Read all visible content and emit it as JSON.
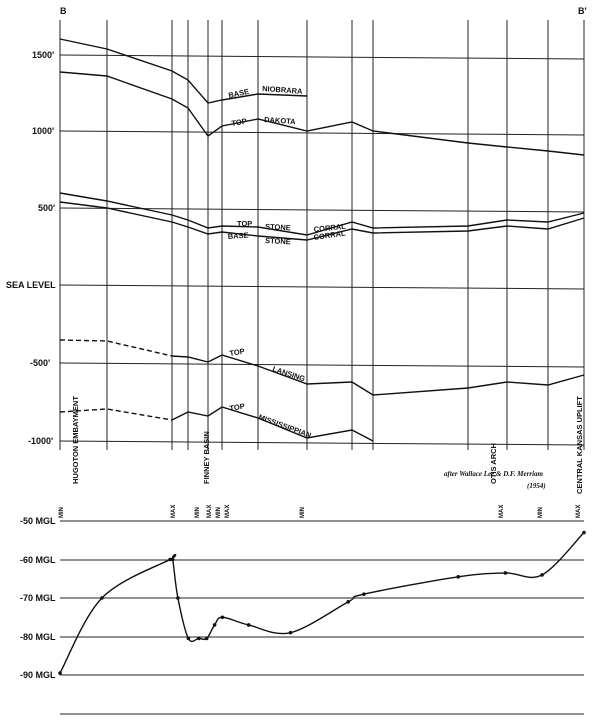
{
  "section": {
    "left_label": "B",
    "right_label": "B'",
    "y_ticks": [
      "1500'",
      "1000'",
      "500'",
      "SEA LEVEL",
      "-500'",
      "-1000'"
    ],
    "horizon_labels": [
      {
        "words": [
          "BASE",
          "NIOBRARA"
        ]
      },
      {
        "words": [
          "TOP",
          "DAKOTA"
        ]
      },
      {
        "words": [
          "TOP",
          "STONE",
          "CORRAL"
        ]
      },
      {
        "words": [
          "BASE",
          "STONE",
          "CORRAL"
        ]
      },
      {
        "words": [
          "TOP",
          "LANSING"
        ]
      },
      {
        "words": [
          "TOP",
          "MISSISSIPPIAN"
        ]
      }
    ],
    "structure_labels": [
      "HUGOTON EMBAYMENT",
      "FINNEY BASIN",
      "OTIS ARCH",
      "CENTRAL KANSAS UPLIFT"
    ],
    "credit_line1": "after Wallace Lee & D.F. Merriam",
    "credit_line2": "(1954)"
  },
  "gravity": {
    "y_ticks": [
      "-50 MGL",
      "-60 MGL",
      "-70 MGL",
      "-80 MGL",
      "-90 MGL"
    ],
    "markers": [
      "MIN",
      "MAX",
      "MIN",
      "MAX",
      "MIN",
      "MAX",
      "MIN",
      "MAX",
      "MIN",
      "MAX"
    ]
  },
  "chart_data": {
    "type": "line",
    "title": "",
    "ylabel": "MGL",
    "ylim": [
      -90,
      -50
    ],
    "series": [
      {
        "x": [
          0,
          0.08,
          0.21,
          0.215,
          0.225,
          0.245,
          0.265,
          0.28,
          0.295,
          0.31,
          0.36,
          0.44,
          0.55,
          0.58,
          0.76,
          0.85,
          0.92,
          1.0
        ],
        "values": [
          -89.5,
          -70,
          -60,
          -60,
          -70,
          -80.5,
          -80.5,
          -80.5,
          -77,
          -75,
          -77,
          -79,
          -71,
          -69,
          -64.5,
          -63.5,
          -64,
          -53
        ]
      }
    ]
  },
  "colors": {
    "ink": "#111111",
    "paper": "#ffffff"
  }
}
